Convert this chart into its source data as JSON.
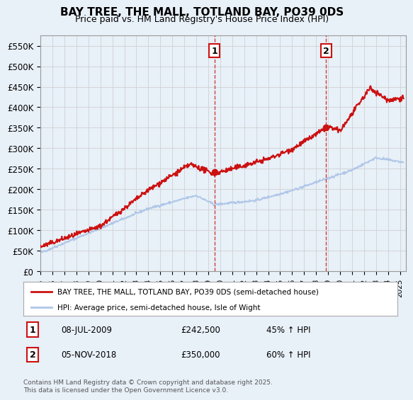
{
  "title": "BAY TREE, THE MALL, TOTLAND BAY, PO39 0DS",
  "subtitle": "Price paid vs. HM Land Registry's House Price Index (HPI)",
  "ylabel_ticks": [
    "£0",
    "£50K",
    "£100K",
    "£150K",
    "£200K",
    "£250K",
    "£300K",
    "£350K",
    "£400K",
    "£450K",
    "£500K",
    "£550K"
  ],
  "ytick_vals": [
    0,
    50000,
    100000,
    150000,
    200000,
    250000,
    300000,
    350000,
    400000,
    450000,
    500000,
    550000
  ],
  "ylim": [
    0,
    575000
  ],
  "xlim_start": 1995.0,
  "xlim_end": 2025.5,
  "transaction1_date": 2009.52,
  "transaction1_price": 242500,
  "transaction2_date": 2018.84,
  "transaction2_price": 350000,
  "hpi_line_color": "#aec6e8",
  "price_line_color": "#cc1111",
  "vline_color": "#cc1111",
  "background_color": "#e8f0f8",
  "grid_color": "#cccccc",
  "legend_line1": "BAY TREE, THE MALL, TOTLAND BAY, PO39 0DS (semi-detached house)",
  "legend_line2": "HPI: Average price, semi-detached house, Isle of Wight",
  "annotation1_date": "08-JUL-2009",
  "annotation1_price": "£242,500",
  "annotation1_hpi": "45% ↑ HPI",
  "annotation2_date": "05-NOV-2018",
  "annotation2_price": "£350,000",
  "annotation2_hpi": "60% ↑ HPI",
  "footer": "Contains HM Land Registry data © Crown copyright and database right 2025.\nThis data is licensed under the Open Government Licence v3.0."
}
